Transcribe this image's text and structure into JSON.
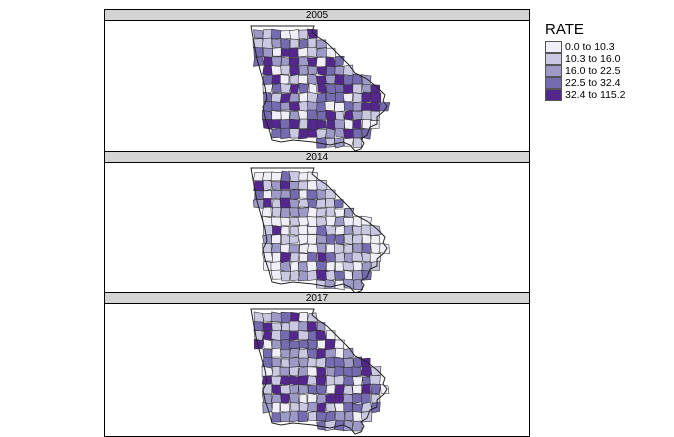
{
  "panels": [
    {
      "year": "2005",
      "seed": 11,
      "weights": [
        0.1,
        0.14,
        0.2,
        0.26,
        0.3
      ]
    },
    {
      "year": "2014",
      "seed": 29,
      "weights": [
        0.34,
        0.3,
        0.18,
        0.11,
        0.07
      ]
    },
    {
      "year": "2017",
      "seed": 47,
      "weights": [
        0.14,
        0.21,
        0.26,
        0.22,
        0.17
      ]
    }
  ],
  "legend": {
    "title": "RATE",
    "items": [
      {
        "label": "0.0 to 10.3",
        "color": "#f0eff7"
      },
      {
        "label": "10.3 to 16.0",
        "color": "#cbc9e2"
      },
      {
        "label": "16.0 to 22.5",
        "color": "#9e9ac8"
      },
      {
        "label": "22.5 to 32.4",
        "color": "#756bb1"
      },
      {
        "label": "32.4 to 115.2",
        "color": "#54278f"
      }
    ]
  },
  "colors": {
    "county_border": "#333333",
    "strip_bg": "#d4d4d4"
  }
}
